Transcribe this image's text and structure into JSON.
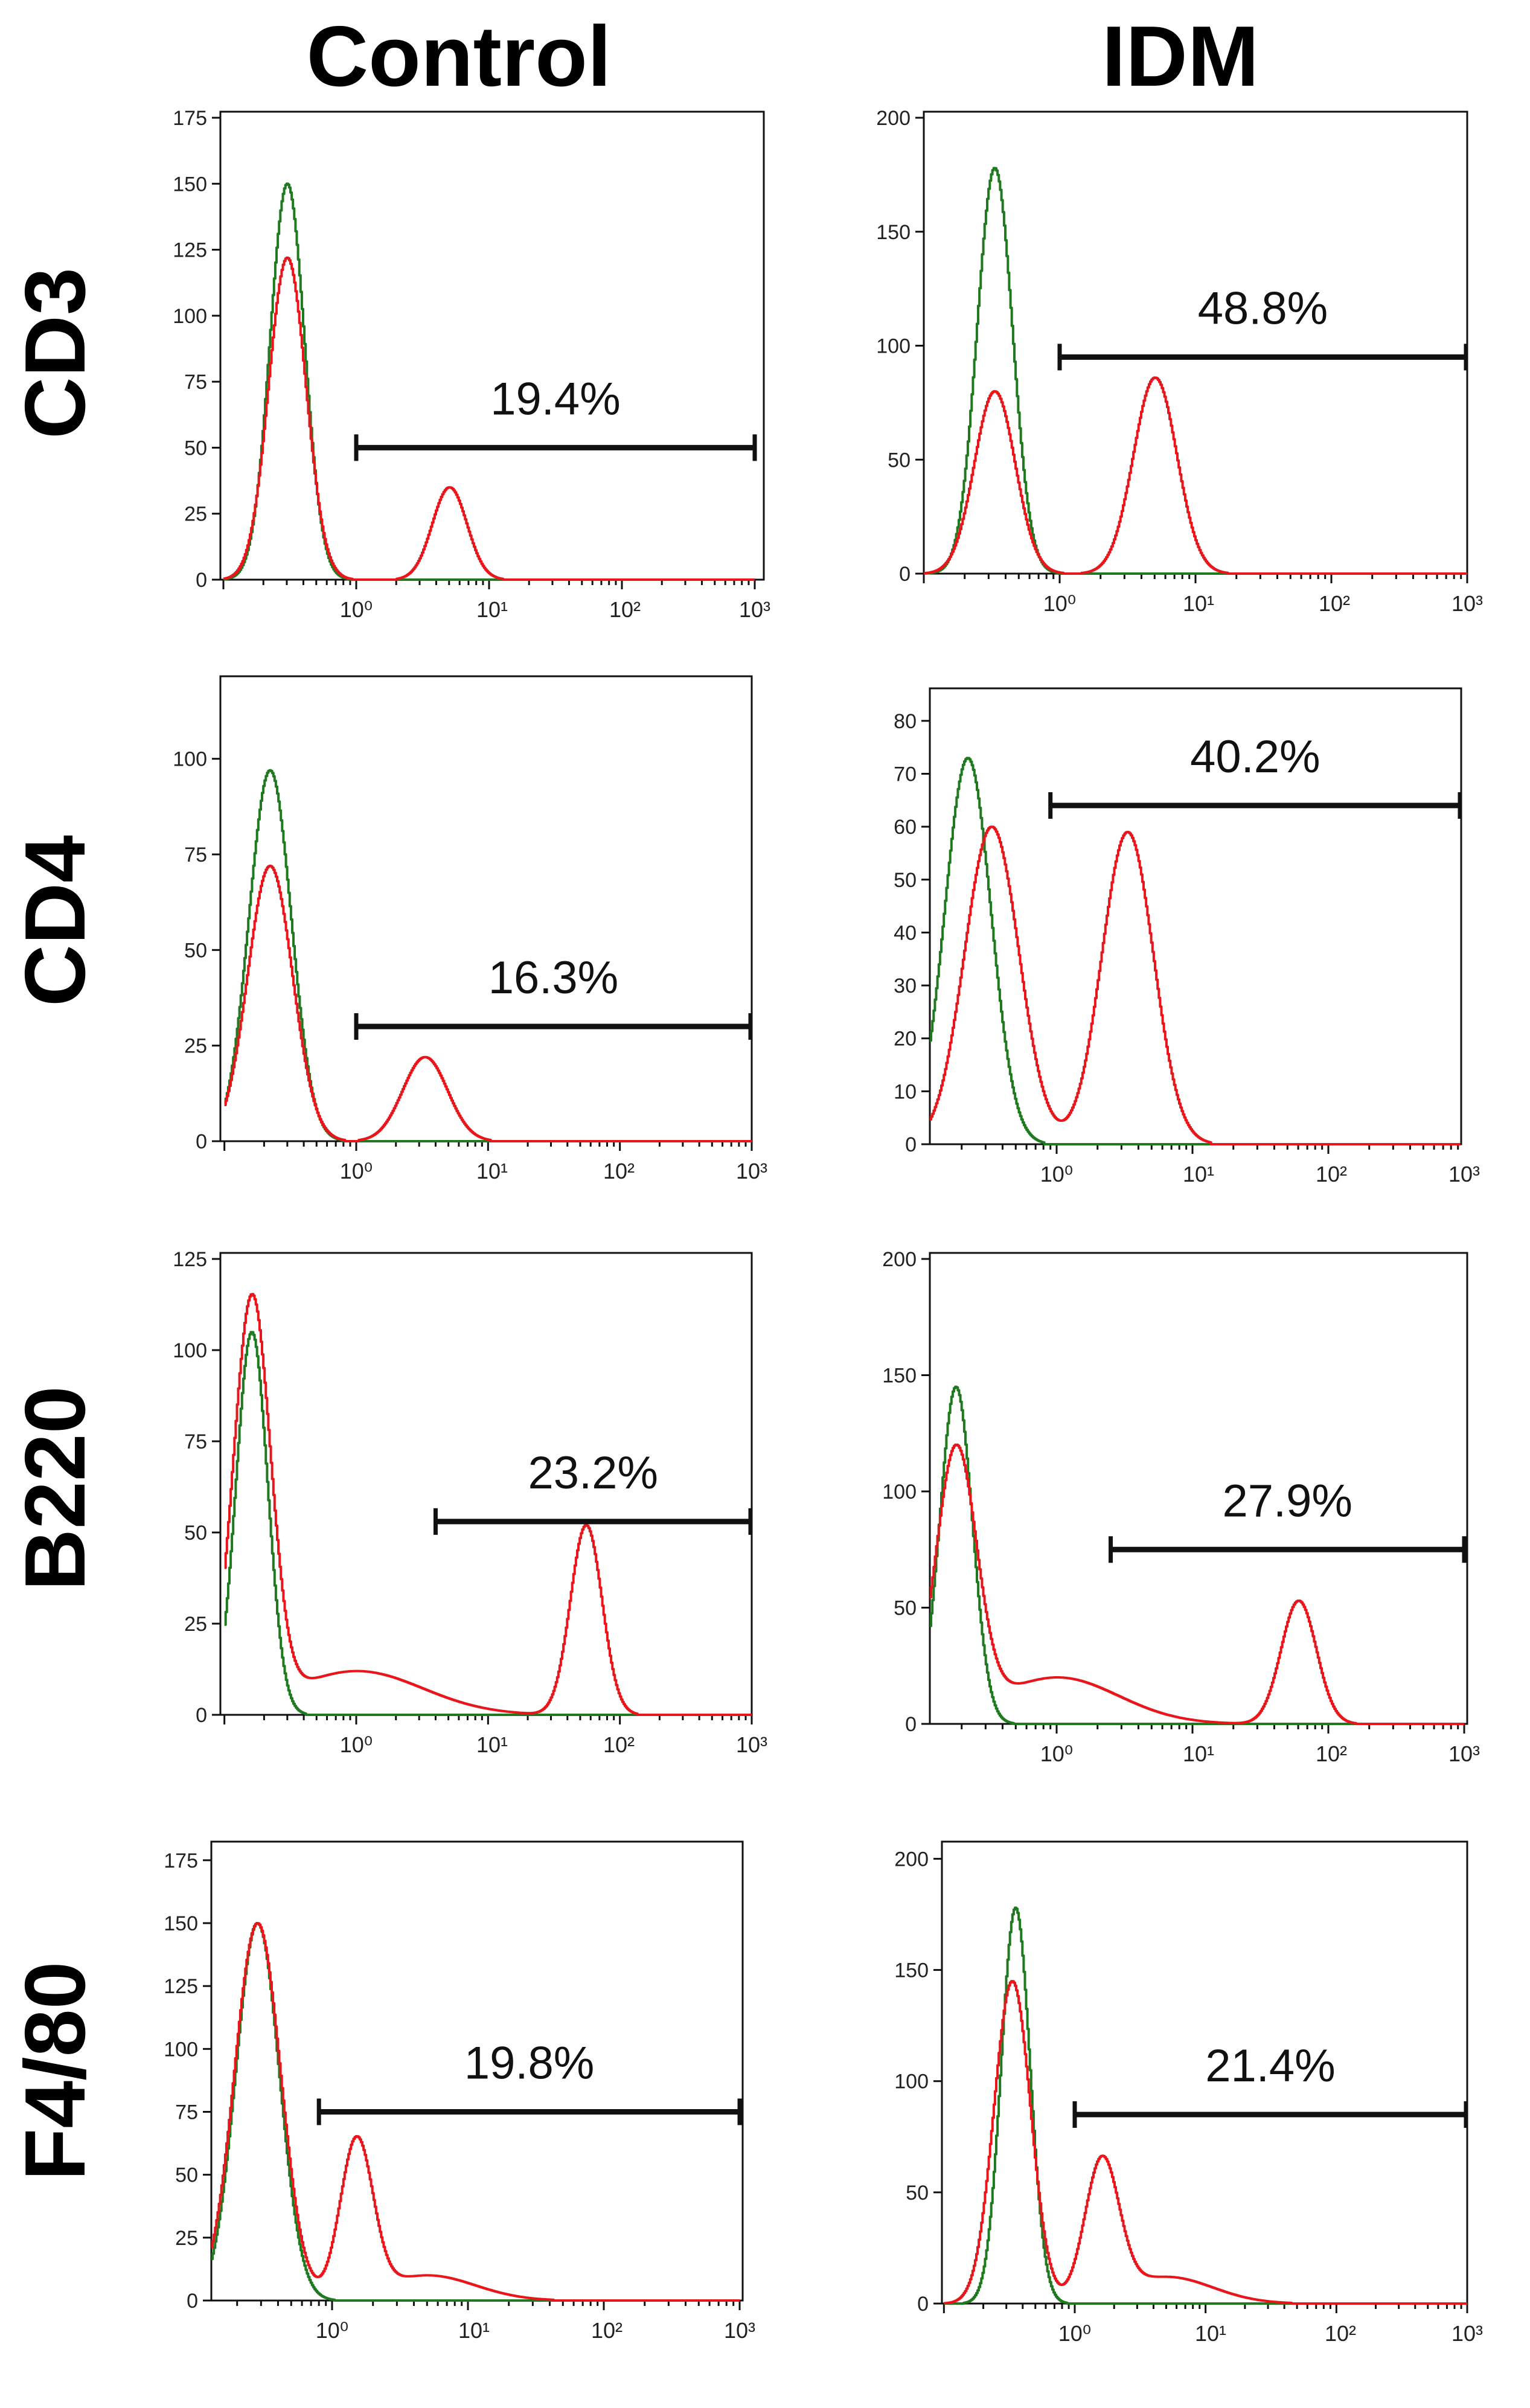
{
  "chart_data": {
    "type": "histogram-grid",
    "column_titles": [
      "Control",
      "IDM"
    ],
    "row_titles": [
      "CD3",
      "CD4",
      "B220",
      "F4/80"
    ],
    "series_colors": {
      "isotype": "#1f7a1f",
      "stained": "#e8161b"
    },
    "x_axis": {
      "scale": "log",
      "range": [
        0.1,
        1000
      ],
      "ticks": [
        1,
        10,
        100,
        1000
      ],
      "tick_labels": [
        "10⁰",
        "10¹",
        "10²",
        "10³"
      ]
    },
    "panels": [
      {
        "row": "CD3",
        "column": "Control",
        "ymax": 175,
        "yticks": [
          0,
          25,
          50,
          75,
          100,
          125,
          150,
          175
        ],
        "gate": {
          "from": 1,
          "to": 1000,
          "y": 50,
          "label": "19.4%"
        },
        "green_peaks": [
          [
            0.3,
            150,
            0.13
          ]
        ],
        "red_peaks": [
          [
            0.3,
            122,
            0.14
          ],
          [
            5,
            35,
            0.13
          ]
        ]
      },
      {
        "row": "CD3",
        "column": "IDM",
        "ymax": 200,
        "yticks": [
          0,
          50,
          100,
          150,
          200
        ],
        "gate": {
          "from": 1,
          "to": 1000,
          "y": 95,
          "label": "48.8%"
        },
        "green_peaks": [
          [
            0.33,
            178,
            0.13
          ]
        ],
        "red_peaks": [
          [
            0.33,
            80,
            0.15
          ],
          [
            5,
            86,
            0.16
          ]
        ]
      },
      {
        "row": "CD4",
        "column": "Control",
        "ymax": 120,
        "yticks": [
          0,
          25,
          50,
          75,
          100
        ],
        "gate": {
          "from": 1,
          "to": 1000,
          "y": 30,
          "label": "16.3%"
        },
        "green_peaks": [
          [
            0.22,
            97,
            0.16
          ]
        ],
        "red_peaks": [
          [
            0.22,
            72,
            0.17
          ],
          [
            3.3,
            22,
            0.17
          ]
        ]
      },
      {
        "row": "CD4",
        "column": "IDM",
        "ymax": 85,
        "yticks": [
          0,
          10,
          20,
          30,
          40,
          50,
          60,
          70,
          80
        ],
        "gate": {
          "from": 0.9,
          "to": 1000,
          "y": 64,
          "label": "40.2%"
        },
        "green_peaks": [
          [
            0.22,
            73,
            0.17
          ]
        ],
        "red_peaks": [
          [
            0.33,
            60,
            0.2
          ],
          [
            3.3,
            59,
            0.19
          ]
        ]
      },
      {
        "row": "B220",
        "column": "Control",
        "ymax": 125,
        "yticks": [
          0,
          25,
          50,
          75,
          100,
          125
        ],
        "gate": {
          "from": 4,
          "to": 1000,
          "y": 53,
          "label": "23.2%"
        },
        "green_peaks": [
          [
            0.16,
            105,
            0.12
          ]
        ],
        "red_peaks": [
          [
            0.16,
            112,
            0.14
          ],
          [
            1,
            12,
            0.5
          ],
          [
            55,
            52,
            0.12
          ]
        ]
      },
      {
        "row": "B220",
        "column": "IDM",
        "ymax": 200,
        "yticks": [
          0,
          50,
          100,
          150,
          200
        ],
        "gate": {
          "from": 2.5,
          "to": 1000,
          "y": 75,
          "label": "27.9%"
        },
        "green_peaks": [
          [
            0.18,
            145,
            0.12
          ]
        ],
        "red_peaks": [
          [
            0.18,
            115,
            0.15
          ],
          [
            1,
            20,
            0.45
          ],
          [
            60,
            53,
            0.13
          ]
        ]
      },
      {
        "row": "F4/80",
        "column": "Control",
        "ymax": 180,
        "yticks": [
          0,
          25,
          50,
          75,
          100,
          125,
          150,
          175
        ],
        "gate": {
          "from": 0.8,
          "to": 1000,
          "y": 75,
          "label": "19.8%"
        },
        "green_peaks": [
          [
            0.28,
            150,
            0.16
          ]
        ],
        "red_peaks": [
          [
            0.28,
            150,
            0.17
          ],
          [
            1.5,
            62,
            0.12
          ],
          [
            5,
            10,
            0.35
          ]
        ]
      },
      {
        "row": "F4/80",
        "column": "IDM",
        "ymax": 205,
        "yticks": [
          0,
          50,
          100,
          150,
          200
        ],
        "gate": {
          "from": 1,
          "to": 1000,
          "y": 85,
          "label": "21.4%"
        },
        "green_peaks": [
          [
            0.35,
            178,
            0.11
          ]
        ],
        "red_peaks": [
          [
            0.33,
            145,
            0.14
          ],
          [
            1.6,
            62,
            0.13
          ],
          [
            5,
            12,
            0.35
          ]
        ]
      }
    ]
  }
}
